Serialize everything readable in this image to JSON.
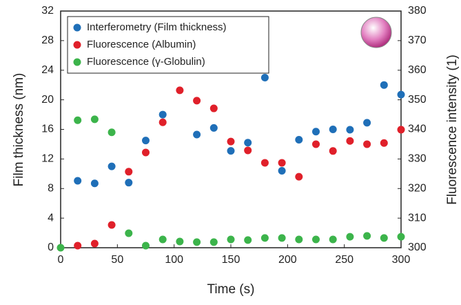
{
  "chart_data": {
    "type": "scatter",
    "x_label": "Time (s)",
    "y_label": "Film thickness (nm)",
    "y2_label": "Fluorescence intensity (1)",
    "xlim": [
      0,
      300
    ],
    "xticks": [
      0,
      50,
      100,
      150,
      200,
      250,
      300
    ],
    "ylim": [
      0,
      32
    ],
    "yticks": [
      0,
      4,
      8,
      12,
      16,
      20,
      24,
      28,
      32
    ],
    "y2lim": [
      300,
      380
    ],
    "y2ticks": [
      300,
      310,
      320,
      330,
      340,
      350,
      360,
      370,
      380
    ],
    "grid": false,
    "legend": "upper left",
    "series": [
      {
        "name": "Interferometry (Film thickness)",
        "color": "#1f6fb8",
        "x": [
          15,
          30,
          45,
          60,
          75,
          90,
          120,
          135,
          150,
          165,
          180,
          195,
          210,
          225,
          240,
          255,
          270,
          285,
          300
        ],
        "values": [
          9.05,
          8.7,
          11.0,
          8.8,
          14.5,
          18.0,
          15.3,
          16.2,
          13.1,
          14.2,
          23.0,
          10.4,
          14.6,
          15.7,
          16.0,
          15.95,
          16.9,
          22.0,
          20.7
        ]
      },
      {
        "name": "Fluorescence (Albumin)",
        "color": "#e0202a",
        "axis": "y2",
        "x": [
          15,
          30,
          45,
          60,
          75,
          90,
          105,
          120,
          135,
          150,
          165,
          180,
          195,
          210,
          225,
          240,
          255,
          270,
          285,
          300
        ],
        "values": [
          300.7,
          301.4,
          307.7,
          325.7,
          332.2,
          342.4,
          353.2,
          349.7,
          347.1,
          335.9,
          332.9,
          328.7,
          328.7,
          324.0,
          335.0,
          332.7,
          336.1,
          335.0,
          335.4,
          339.9
        ]
      },
      {
        "name": "Fluorescence (γ-Globulin)",
        "color": "#3cb44b",
        "axis": "y2",
        "x": [
          0,
          15,
          30,
          45,
          60,
          75,
          90,
          105,
          120,
          135,
          150,
          165,
          180,
          195,
          210,
          225,
          240,
          255,
          270,
          285,
          300
        ],
        "values": [
          300,
          343.1,
          343.4,
          339.0,
          304.9,
          300.7,
          302.8,
          302.1,
          301.9,
          301.9,
          302.8,
          302.6,
          303.3,
          303.3,
          302.8,
          302.8,
          302.8,
          303.7,
          304.0,
          303.3,
          303.7
        ]
      }
    ]
  }
}
